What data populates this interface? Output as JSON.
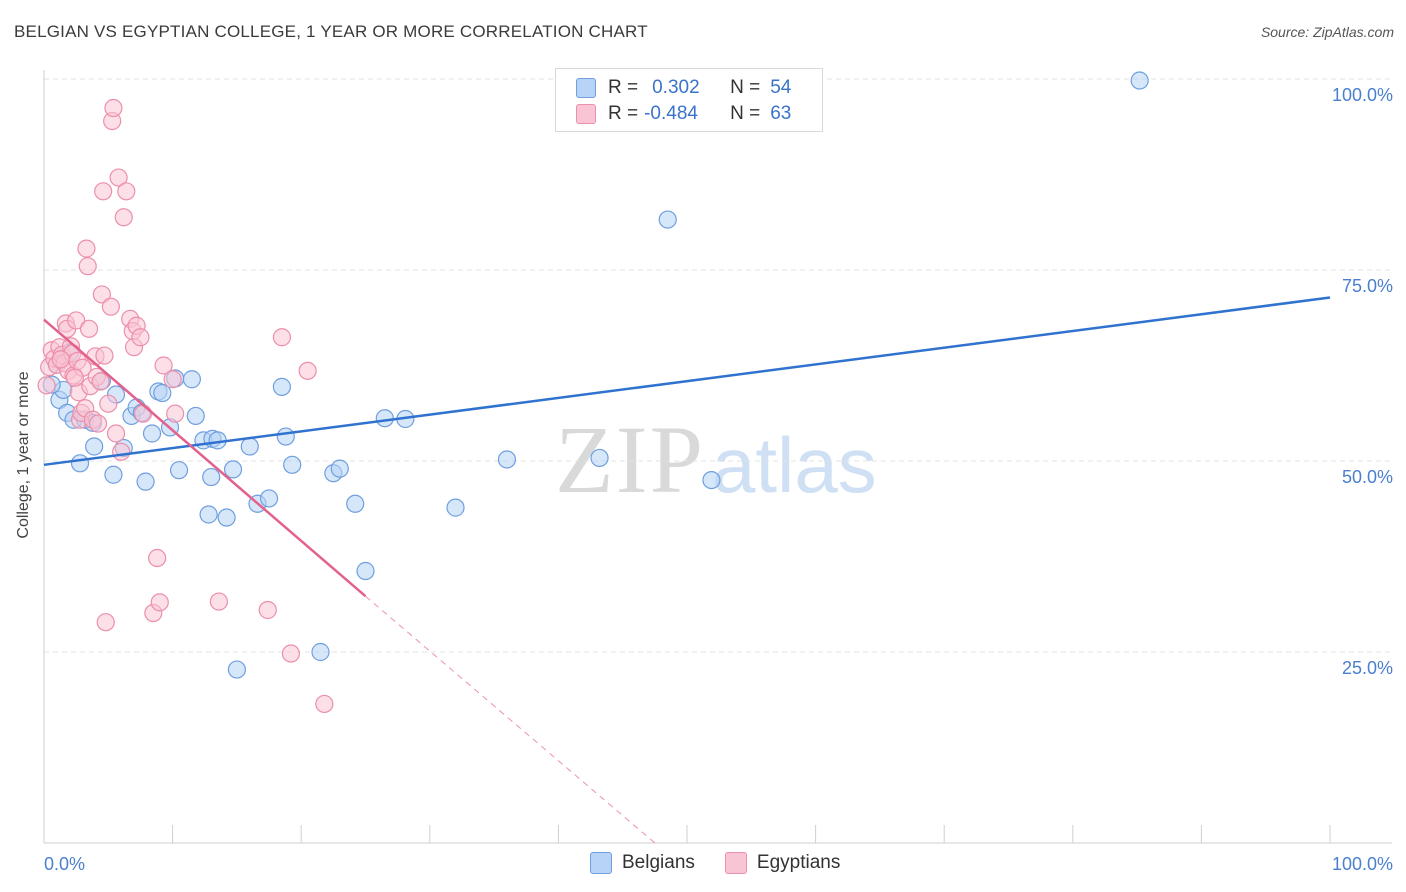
{
  "header": {
    "title": "BELGIAN VS EGYPTIAN COLLEGE, 1 YEAR OR MORE CORRELATION CHART",
    "source": "Source: ZipAtlas.com"
  },
  "legend": {
    "rows": [
      {
        "r_key": "R =",
        "r_value": "0.302",
        "n_key": "N =",
        "n_value": "54"
      },
      {
        "r_key": "R =",
        "r_value": "-0.484",
        "n_key": "N =",
        "n_value": "63"
      }
    ],
    "series_names": [
      "Belgians",
      "Egyptians"
    ]
  },
  "watermark": {
    "zip": "ZIP",
    "atlas": "atlas"
  },
  "colors": {
    "blue_fill": "#b7d3f5",
    "blue_stroke": "#6f9fde",
    "blue_line": "#2f72cf",
    "pink_fill": "#f9c4d3",
    "pink_stroke": "#ec8fab",
    "pink_line": "#e3628d",
    "axis_label": "#4a7fcf",
    "grid": "#e3e3e3"
  },
  "chart_data": {
    "type": "scatter",
    "title": "BELGIAN VS EGYPTIAN COLLEGE, 1 YEAR OR MORE CORRELATION CHART",
    "xlabel": "",
    "ylabel": "College, 1 year or more",
    "xlim": [
      0,
      100
    ],
    "ylim": [
      0,
      100
    ],
    "x_tick_labels": [
      "0.0%",
      "100.0%"
    ],
    "y_tick_labels": [
      "25.0%",
      "50.0%",
      "75.0%",
      "100.0%"
    ],
    "y_ticks": [
      25,
      50,
      75,
      100
    ],
    "grid": true,
    "legend_position": "top-center",
    "series": [
      {
        "name": "Belgians",
        "color": "#6f9fde",
        "trend": {
          "x": [
            0,
            100
          ],
          "y": [
            49.5,
            71.4
          ]
        },
        "points": [
          [
            1.0,
            62.6
          ],
          [
            1.2,
            58.0
          ],
          [
            1.5,
            59.3
          ],
          [
            1.8,
            56.3
          ],
          [
            2.3,
            55.4
          ],
          [
            2.8,
            49.7
          ],
          [
            3.2,
            55.4
          ],
          [
            3.8,
            55.0
          ],
          [
            3.9,
            51.9
          ],
          [
            5.6,
            58.7
          ],
          [
            5.4,
            48.2
          ],
          [
            6.2,
            51.7
          ],
          [
            6.8,
            55.9
          ],
          [
            7.2,
            57.0
          ],
          [
            7.6,
            56.3
          ],
          [
            7.9,
            47.3
          ],
          [
            8.4,
            53.6
          ],
          [
            8.9,
            59.1
          ],
          [
            9.2,
            58.9
          ],
          [
            9.8,
            54.4
          ],
          [
            10.2,
            60.8
          ],
          [
            10.5,
            48.8
          ],
          [
            11.5,
            60.7
          ],
          [
            11.8,
            55.9
          ],
          [
            12.4,
            52.7
          ],
          [
            12.8,
            43.0
          ],
          [
            13.1,
            52.9
          ],
          [
            13.5,
            52.7
          ],
          [
            14.2,
            42.6
          ],
          [
            14.7,
            48.9
          ],
          [
            15.0,
            22.7
          ],
          [
            16.0,
            51.9
          ],
          [
            16.6,
            44.4
          ],
          [
            17.5,
            45.1
          ],
          [
            18.5,
            59.7
          ],
          [
            18.8,
            53.2
          ],
          [
            19.3,
            49.5
          ],
          [
            21.5,
            25.0
          ],
          [
            22.5,
            48.4
          ],
          [
            23.0,
            49.0
          ],
          [
            24.2,
            44.4
          ],
          [
            25.0,
            35.6
          ],
          [
            26.5,
            55.6
          ],
          [
            28.1,
            55.5
          ],
          [
            32.0,
            43.9
          ],
          [
            36.0,
            50.2
          ],
          [
            43.2,
            50.4
          ],
          [
            48.5,
            81.6
          ],
          [
            51.9,
            47.5
          ],
          [
            85.2,
            99.8
          ],
          [
            0.6,
            60.0
          ],
          [
            2.0,
            64.2
          ],
          [
            4.5,
            60.5
          ],
          [
            13.0,
            47.9
          ]
        ]
      },
      {
        "name": "Egyptians",
        "color": "#ec8fab",
        "trend": {
          "x": [
            0,
            25
          ],
          "y": [
            68.5,
            32.3
          ],
          "dashed_to": {
            "x": 47.5,
            "y": 0
          }
        },
        "points": [
          [
            0.4,
            62.3
          ],
          [
            0.6,
            64.5
          ],
          [
            0.8,
            63.4
          ],
          [
            1.0,
            62.6
          ],
          [
            1.2,
            64.9
          ],
          [
            1.4,
            63.9
          ],
          [
            1.6,
            62.8
          ],
          [
            1.7,
            68.0
          ],
          [
            1.8,
            67.3
          ],
          [
            1.9,
            61.8
          ],
          [
            2.1,
            65.0
          ],
          [
            2.2,
            64.1
          ],
          [
            2.3,
            61.2
          ],
          [
            2.5,
            68.4
          ],
          [
            2.6,
            63.1
          ],
          [
            2.7,
            59.0
          ],
          [
            2.8,
            55.4
          ],
          [
            2.9,
            56.3
          ],
          [
            3.0,
            62.2
          ],
          [
            3.2,
            56.9
          ],
          [
            3.3,
            77.8
          ],
          [
            3.4,
            75.5
          ],
          [
            3.5,
            67.3
          ],
          [
            3.6,
            59.8
          ],
          [
            3.8,
            55.4
          ],
          [
            4.0,
            63.7
          ],
          [
            4.1,
            61.0
          ],
          [
            4.2,
            54.9
          ],
          [
            4.4,
            60.4
          ],
          [
            4.5,
            71.8
          ],
          [
            4.6,
            85.3
          ],
          [
            4.7,
            63.8
          ],
          [
            4.8,
            28.9
          ],
          [
            5.0,
            57.5
          ],
          [
            5.2,
            70.2
          ],
          [
            5.3,
            94.5
          ],
          [
            5.4,
            96.2
          ],
          [
            5.6,
            53.6
          ],
          [
            5.8,
            87.1
          ],
          [
            6.0,
            51.2
          ],
          [
            6.2,
            81.9
          ],
          [
            6.4,
            85.3
          ],
          [
            6.7,
            68.6
          ],
          [
            6.9,
            67.0
          ],
          [
            7.0,
            64.9
          ],
          [
            7.2,
            67.7
          ],
          [
            7.5,
            66.2
          ],
          [
            7.7,
            56.2
          ],
          [
            8.5,
            30.1
          ],
          [
            8.8,
            37.3
          ],
          [
            9.0,
            31.5
          ],
          [
            9.3,
            62.5
          ],
          [
            10.0,
            60.7
          ],
          [
            10.2,
            56.2
          ],
          [
            13.6,
            31.6
          ],
          [
            17.4,
            30.5
          ],
          [
            18.5,
            66.2
          ],
          [
            19.2,
            24.8
          ],
          [
            20.5,
            61.8
          ],
          [
            21.8,
            18.2
          ],
          [
            0.2,
            59.9
          ],
          [
            1.3,
            63.3
          ],
          [
            2.4,
            60.9
          ]
        ]
      }
    ]
  }
}
